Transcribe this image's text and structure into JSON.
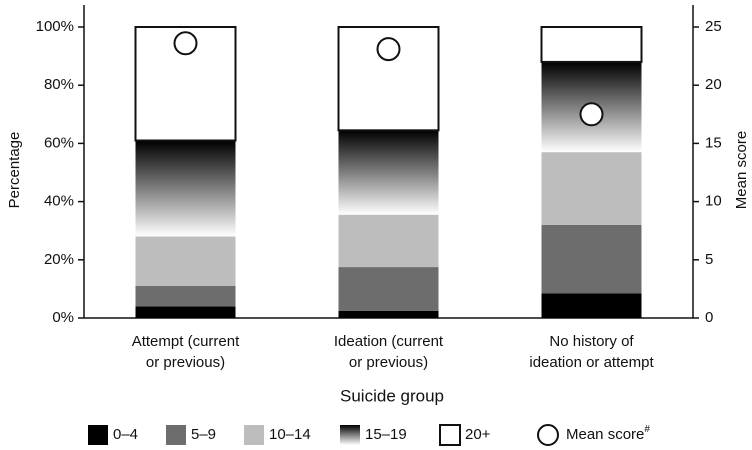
{
  "chart_data": {
    "type": "stacked_bar",
    "categories": [
      [
        "Attempt (current",
        "or previous)"
      ],
      [
        "Ideation (current",
        "or previous)"
      ],
      [
        "No history of",
        "ideation or attempt"
      ]
    ],
    "series": [
      {
        "name": "0–4",
        "color": "#000000",
        "values": [
          4,
          2.5,
          8.5
        ]
      },
      {
        "name": "5–9",
        "color": "#6d6d6d",
        "values": [
          7,
          15,
          23.5
        ]
      },
      {
        "name": "10–14",
        "color": "#bdbdbd",
        "values": [
          17,
          18,
          25
        ]
      },
      {
        "name": "15–19",
        "color": [
          "#000000",
          "#ffffff"
        ],
        "values": [
          33,
          29,
          31
        ]
      },
      {
        "name": "20+",
        "color": "#ffffff",
        "values": [
          39,
          35.5,
          12
        ]
      }
    ],
    "mean_score": {
      "name": "Mean score",
      "note": "#",
      "axis": "y2",
      "values": [
        23.6,
        23.1,
        17.5
      ]
    },
    "xlabel": "Suicide group",
    "ylabel": "Percentage",
    "y2label": "Mean score",
    "ylim": [
      0,
      100
    ],
    "yticks": [
      {
        "value": 0,
        "label": "0%"
      },
      {
        "value": 20,
        "label": "20%"
      },
      {
        "value": 40,
        "label": "40%"
      },
      {
        "value": 60,
        "label": "60%"
      },
      {
        "value": 80,
        "label": "80%"
      },
      {
        "value": 100,
        "label": "100%"
      }
    ],
    "y2lim": [
      0,
      25
    ],
    "y2ticks": [
      0,
      5,
      10,
      15,
      20,
      25
    ],
    "legend": "bottom"
  }
}
